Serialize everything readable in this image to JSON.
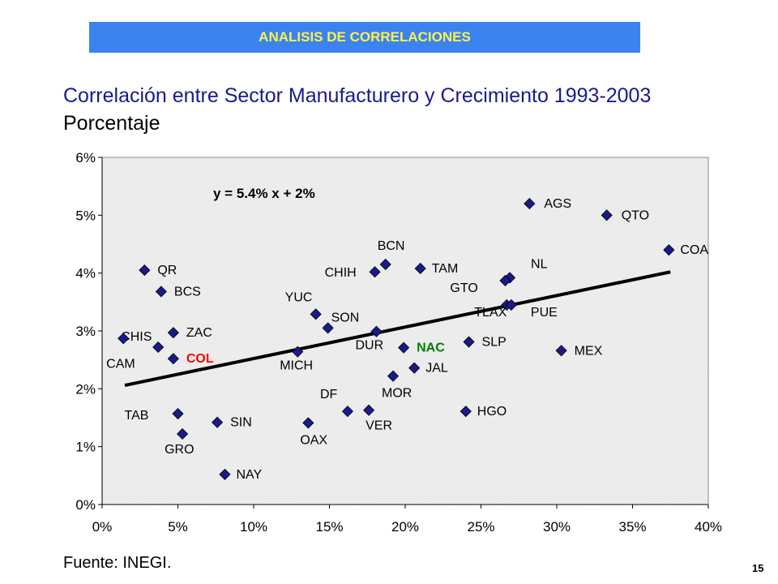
{
  "header": {
    "banner": "ANALISIS DE CORRELACIONES"
  },
  "footer": {
    "source": "Fuente: INEGI.",
    "page_number": "15"
  },
  "chart_data": {
    "type": "scatter",
    "title": "Correlación entre Sector Manufacturero y Crecimiento 1993-2003",
    "subtitle": "Porcentaje",
    "xlabel": "",
    "ylabel": "",
    "xlim": [
      0,
      40
    ],
    "ylim": [
      0,
      6
    ],
    "x_ticks": [
      "0%",
      "5%",
      "10%",
      "15%",
      "20%",
      "25%",
      "30%",
      "35%",
      "40%"
    ],
    "y_ticks": [
      "0%",
      "1%",
      "2%",
      "3%",
      "4%",
      "5%",
      "6%"
    ],
    "grid": false,
    "equation": "y = 5.4% x + 2%",
    "trendline": {
      "x": [
        1.5,
        37.5
      ],
      "y": [
        2.06,
        4.02
      ]
    },
    "colors": {
      "marker": "#1a1a8c",
      "plot_bg": "#d9d9d9",
      "highlight_col": "#ff0000",
      "highlight_nac": "#008000"
    },
    "points": [
      {
        "label": "AGS",
        "x": 28.2,
        "y": 5.2
      },
      {
        "label": "QTO",
        "x": 33.3,
        "y": 5.0
      },
      {
        "label": "COA",
        "x": 37.4,
        "y": 4.4
      },
      {
        "label": "BCN",
        "x": 18.7,
        "y": 4.15
      },
      {
        "label": "CHIH",
        "x": 18.0,
        "y": 4.02
      },
      {
        "label": "TAM",
        "x": 21.0,
        "y": 4.08
      },
      {
        "label": "NL",
        "x": 26.9,
        "y": 3.92
      },
      {
        "label": "GTO",
        "x": 26.6,
        "y": 3.87
      },
      {
        "label": "QR",
        "x": 2.8,
        "y": 4.05
      },
      {
        "label": "BCS",
        "x": 3.9,
        "y": 3.68
      },
      {
        "label": "YUC",
        "x": 14.1,
        "y": 3.29
      },
      {
        "label": "SON",
        "x": 14.9,
        "y": 3.05
      },
      {
        "label": "TLAX",
        "x": 26.7,
        "y": 3.45
      },
      {
        "label": "PUE",
        "x": 27.0,
        "y": 3.45
      },
      {
        "label": "CHIS",
        "x": 3.7,
        "y": 2.72
      },
      {
        "label": "ZAC",
        "x": 4.7,
        "y": 2.97
      },
      {
        "label": "CAM",
        "x": 1.4,
        "y": 2.87
      },
      {
        "label": "COL",
        "x": 4.7,
        "y": 2.52
      },
      {
        "label": "DUR",
        "x": 18.1,
        "y": 2.99
      },
      {
        "label": "NAC",
        "x": 19.9,
        "y": 2.71
      },
      {
        "label": "SLP",
        "x": 24.2,
        "y": 2.81
      },
      {
        "label": "MEX",
        "x": 30.3,
        "y": 2.66
      },
      {
        "label": "MICH",
        "x": 12.9,
        "y": 2.64
      },
      {
        "label": "JAL",
        "x": 20.6,
        "y": 2.36
      },
      {
        "label": "MOR",
        "x": 19.2,
        "y": 2.22
      },
      {
        "label": "DF",
        "x": 16.2,
        "y": 1.61
      },
      {
        "label": "VER",
        "x": 17.6,
        "y": 1.63
      },
      {
        "label": "HGO",
        "x": 24.0,
        "y": 1.61
      },
      {
        "label": "TAB",
        "x": 5.0,
        "y": 1.57
      },
      {
        "label": "SIN",
        "x": 7.6,
        "y": 1.42
      },
      {
        "label": "OAX",
        "x": 13.6,
        "y": 1.41
      },
      {
        "label": "GRO",
        "x": 5.3,
        "y": 1.22
      },
      {
        "label": "NAY",
        "x": 8.1,
        "y": 0.52
      }
    ]
  }
}
